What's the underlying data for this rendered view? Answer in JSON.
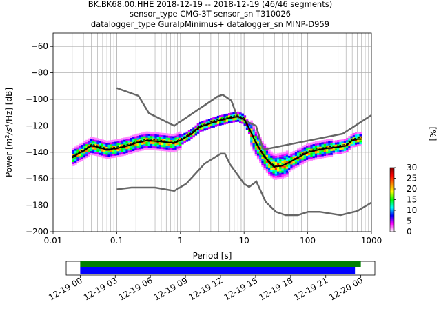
{
  "chart_data": [
    {
      "type": "heatmap",
      "title_lines": [
        "BK.BK68.00.HHE   2018-12-19 -- 2018-12-19  (46/46 segments)",
        "sensor_type CMG-3T sensor_sn T310026",
        "datalogger_type GuralpMinimus+ datalogger_sn MINP-D959"
      ],
      "ylabel_prefix": "Power [",
      "ylabel_unit_base": "m",
      "ylabel_sup1": "2",
      "ylabel_mid": "/s",
      "ylabel_sup2": "4",
      "ylabel_suffix": "/Hz] [dB]",
      "xlabel": "Period [s]",
      "xscale": "log",
      "xlim": [
        0.01,
        1000
      ],
      "ylim": [
        -200,
        -50
      ],
      "x_tick_labels": [
        "0.01",
        "0.1",
        "1",
        "10",
        "100",
        "1000"
      ],
      "y_tick_values": [
        -200,
        -180,
        -160,
        -140,
        -120,
        -100,
        -80,
        -60
      ],
      "y_tick_labels": [
        "−200",
        "−180",
        "−160",
        "−140",
        "−120",
        "−100",
        "−80",
        "−60"
      ],
      "grid": true,
      "colorbar": {
        "label": "[%]",
        "range": [
          0,
          30
        ],
        "tick_labels": [
          "0",
          "5",
          "10",
          "15",
          "20",
          "25",
          "30"
        ],
        "stops": [
          "#ffffff",
          "#ff00ff",
          "#0000ff",
          "#00ffff",
          "#00ff00",
          "#ffff00",
          "#ff8000",
          "#ff0000",
          "#800000"
        ]
      },
      "nhnm": {
        "name": "NHNM",
        "x": [
          0.1,
          0.22,
          0.32,
          0.8,
          3.8,
          4.6,
          6.3,
          7.9,
          15.4,
          20,
          354.8,
          1000
        ],
        "y": [
          -91.5,
          -97.4,
          -110.5,
          -120,
          -98,
          -96.5,
          -101,
          -113.5,
          -120,
          -138,
          -126,
          -112
        ]
      },
      "nlnm": {
        "name": "NLNM",
        "x": [
          0.1,
          0.17,
          0.4,
          0.8,
          1.24,
          2.4,
          4.3,
          5,
          6,
          10,
          12,
          15.6,
          21.9,
          31.6,
          45,
          70,
          101,
          154,
          328,
          600,
          1000
        ],
        "y": [
          -168,
          -166.7,
          -166.7,
          -169.2,
          -163.7,
          -148.6,
          -141.1,
          -141.1,
          -149,
          -163.8,
          -166.2,
          -162.1,
          -177.5,
          -185,
          -187.5,
          -187.5,
          -185,
          -185,
          -187.5,
          -184.4,
          -178
        ]
      },
      "median": {
        "name": "median",
        "x": [
          0.02,
          0.025,
          0.03,
          0.04,
          0.05,
          0.07,
          0.1,
          0.15,
          0.2,
          0.3,
          0.5,
          0.8,
          1,
          1.5,
          2,
          3,
          4,
          5,
          6,
          8,
          10,
          12,
          15,
          20,
          25,
          30,
          40,
          50,
          70,
          100,
          150,
          200,
          300,
          400,
          500,
          600,
          700
        ],
        "y": [
          -144,
          -141,
          -139,
          -135,
          -136,
          -138,
          -137,
          -135,
          -133,
          -131,
          -132,
          -133,
          -131,
          -126,
          -121,
          -118,
          -116,
          -115,
          -114,
          -113,
          -115,
          -122,
          -132,
          -142,
          -148,
          -151,
          -150,
          -148,
          -144,
          -140,
          -138,
          -137,
          -136,
          -135,
          -131,
          -130,
          -130
        ]
      },
      "mean": {
        "name": "mean",
        "x": [
          0.02,
          0.025,
          0.03,
          0.04,
          0.05,
          0.07,
          0.1,
          0.15,
          0.2,
          0.3,
          0.5,
          0.8,
          1,
          1.5,
          2,
          3,
          4,
          5,
          6,
          8,
          10,
          12,
          15,
          20,
          25,
          30,
          40,
          50,
          70,
          100,
          150,
          200,
          300,
          400,
          500,
          600,
          700
        ],
        "y": [
          -143,
          -140,
          -138,
          -134,
          -135,
          -137,
          -136,
          -134,
          -132,
          -130,
          -131,
          -132,
          -130,
          -125,
          -120,
          -117,
          -115,
          -114,
          -113,
          -112,
          -114,
          -121,
          -131,
          -141,
          -147,
          -150,
          -150,
          -148,
          -143,
          -139,
          -137,
          -136,
          -135,
          -134,
          -130,
          -129,
          -129
        ]
      }
    },
    {
      "type": "timeline",
      "x_tick_labels": [
        "12-19 00",
        "12-19 03",
        "12-19 06",
        "12-19 09",
        "12-19 12",
        "12-19 15",
        "12-19 18",
        "12-19 21",
        "12-20 00"
      ],
      "x_tick_hours": [
        0,
        3,
        6,
        9,
        12,
        15,
        18,
        21,
        24
      ],
      "xlim_hours": [
        -1.2,
        25.2
      ],
      "data_bar": {
        "start_hour": 0,
        "end_hour": 24,
        "color": "#008000"
      },
      "psd_bar": {
        "start_hour": 0,
        "end_hour": 23.5,
        "color": "#0000ff"
      }
    }
  ]
}
